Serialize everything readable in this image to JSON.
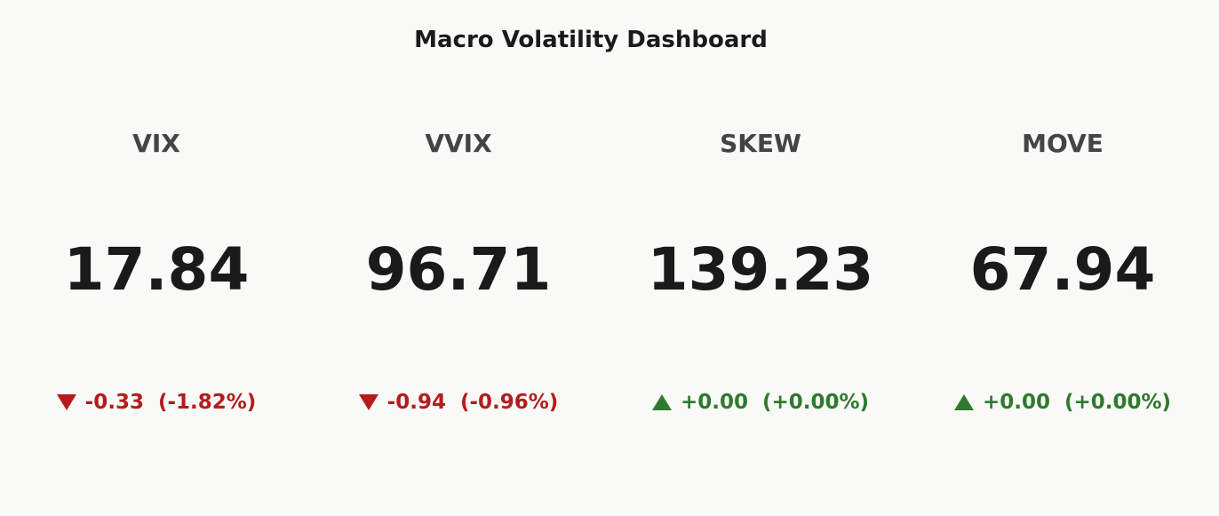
{
  "header": {
    "title": "Macro Volatility Dashboard"
  },
  "cards": [
    {
      "name": "VIX",
      "value": "17.84",
      "change": "-0.33",
      "change_pct": "(-1.82%)"
    },
    {
      "name": "VVIX",
      "value": "96.71",
      "change": "-0.94",
      "change_pct": "(-0.96%)"
    },
    {
      "name": "SKEW",
      "value": "139.23",
      "change": "+0.00",
      "change_pct": "(+0.00%)"
    },
    {
      "name": "MOVE",
      "value": "67.94",
      "change": "+0.00",
      "change_pct": "(+0.00%)"
    }
  ]
}
